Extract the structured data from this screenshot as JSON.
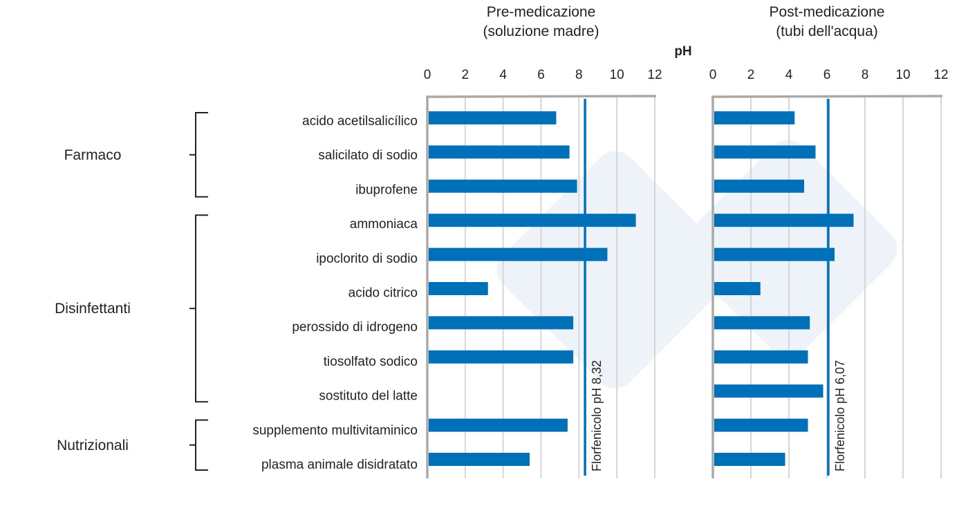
{
  "chart_data": [
    {
      "type": "bar",
      "orientation": "horizontal",
      "title": "Pre-medicazione\n(soluzione madre)",
      "title_lines": [
        "Pre-medicazione",
        "(soluzione madre)"
      ],
      "xlabel": "pH",
      "xlim": [
        0,
        12
      ],
      "xticks": [
        "0",
        "2",
        "4",
        "6",
        "8",
        "10",
        "12"
      ],
      "grid": true,
      "categories": [
        "acido acetilsalicílico",
        "salicilato di sodio",
        "ibuprofene",
        "ammoniaca",
        "ipoclorito di sodio",
        "acido citrico",
        "perossido di idrogeno",
        "tiosolfato sodico",
        "sostituto del latte",
        "supplemento multivitaminico",
        "plasma animale disidratato"
      ],
      "values": [
        6.8,
        7.5,
        7.9,
        11.0,
        9.5,
        3.2,
        7.7,
        7.7,
        null,
        7.4,
        5.4
      ],
      "reference_line": {
        "value": 8.32,
        "label": "Florfenicolo pH 8,32"
      },
      "bar_color": "#0070b8"
    },
    {
      "type": "bar",
      "orientation": "horizontal",
      "title": "Post-medicazione\n(tubi dell'acqua)",
      "title_lines": [
        "Post-medicazione",
        "(tubi dell'acqua)"
      ],
      "xlim": [
        0,
        12
      ],
      "xticks": [
        "0",
        "2",
        "4",
        "6",
        "8",
        "10",
        "12"
      ],
      "grid": true,
      "values": [
        4.3,
        5.4,
        4.8,
        7.4,
        6.4,
        2.5,
        5.1,
        5.0,
        5.8,
        5.0,
        3.8
      ],
      "reference_line": {
        "value": 6.07,
        "label": "Florfenicolo pH 6,07"
      },
      "bar_color": "#0070b8"
    }
  ],
  "groups": [
    {
      "label": "Farmaco",
      "from": 0,
      "to": 2
    },
    {
      "label": "Disinfettanti",
      "from": 3,
      "to": 8
    },
    {
      "label": "Nutrizionali",
      "from": 9,
      "to": 10
    }
  ]
}
